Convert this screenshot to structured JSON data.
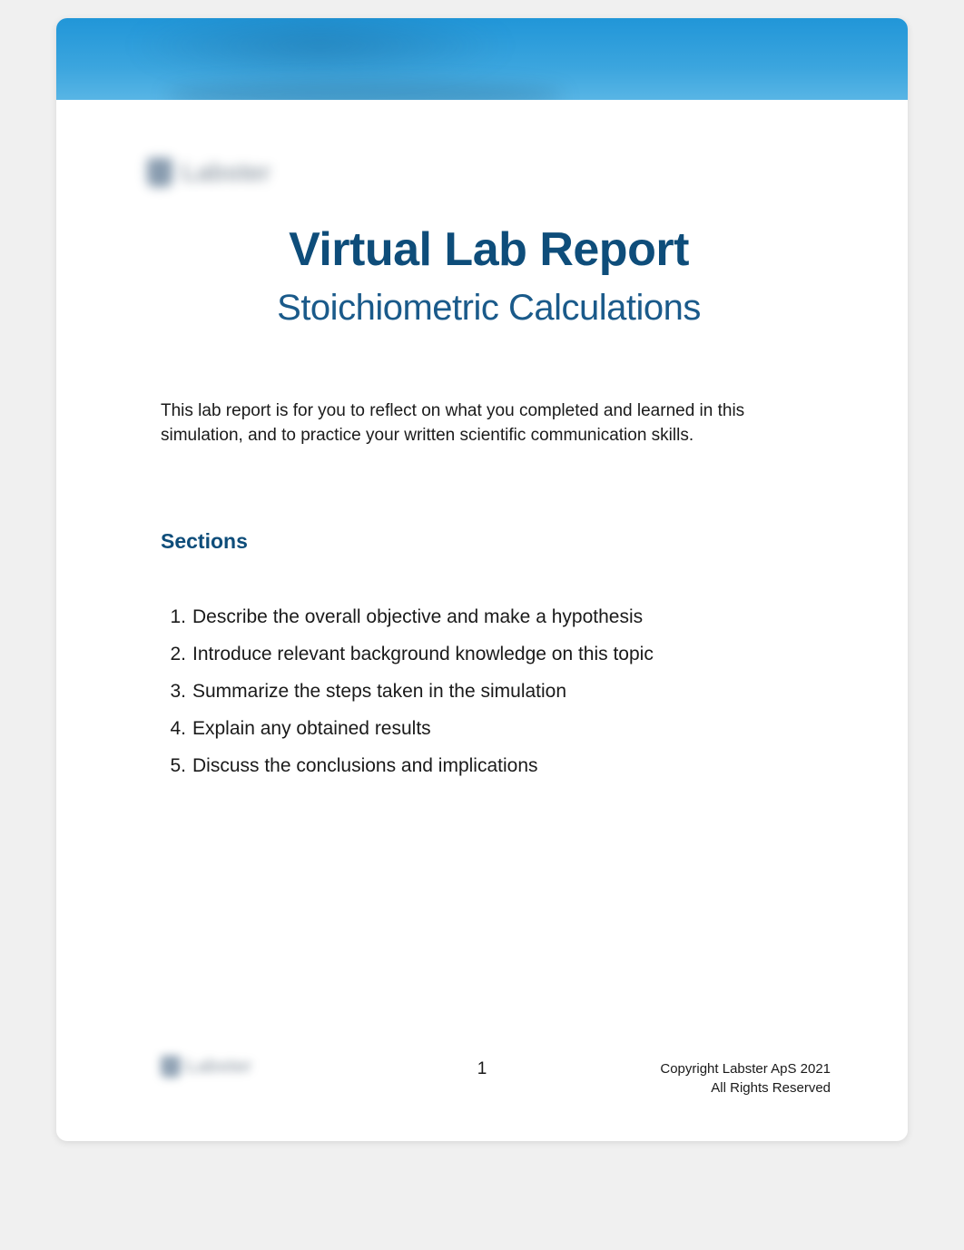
{
  "banner": {
    "gradient_top": "#2196d8",
    "gradient_bottom": "#58b5e5"
  },
  "logo": {
    "brand": "Labster"
  },
  "title": "Virtual Lab Report",
  "subtitle": "Stoichiometric Calculations",
  "intro": "This lab report is for you to reflect on what you completed and learned in this simulation, and to practice your written scientific communication skills.",
  "sections_heading": "Sections",
  "sections": [
    "Describe the overall objective and make a hypothesis",
    "Introduce relevant background knowledge on this topic",
    "Summarize the steps taken in the simulation",
    "Explain any obtained results",
    "Discuss the conclusions and implications"
  ],
  "footer": {
    "page_number": "1",
    "copyright_line1": "Copyright Labster ApS 2021",
    "copyright_line2": "All Rights Reserved"
  },
  "colors": {
    "heading": "#0e4d7a",
    "subtitle": "#1a5a8a",
    "body_text": "#1a1a1a",
    "background": "#ffffff"
  },
  "typography": {
    "title_fontsize": 52,
    "subtitle_fontsize": 40,
    "body_fontsize": 19,
    "sections_heading_fontsize": 23,
    "list_fontsize": 21,
    "footer_fontsize": 15
  }
}
